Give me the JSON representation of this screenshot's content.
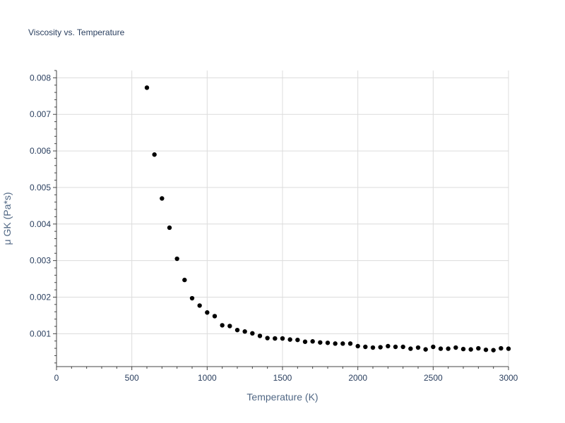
{
  "chart_data": {
    "type": "scatter",
    "title": "Viscosity vs. Temperature",
    "xlabel": "Temperature (K)",
    "ylabel": "μ GK (Pa*s)",
    "xlim": [
      0,
      3000
    ],
    "ylim": [
      0.0001,
      0.0082
    ],
    "x_ticks": [
      0,
      500,
      1000,
      1500,
      2000,
      2500,
      3000
    ],
    "x_tick_labels": [
      "0",
      "500",
      "1000",
      "1500",
      "2000",
      "2500",
      "3000"
    ],
    "y_ticks": [
      0.001,
      0.002,
      0.003,
      0.004,
      0.005,
      0.006,
      0.007,
      0.008
    ],
    "y_tick_labels": [
      "0.001",
      "0.002",
      "0.003",
      "0.004",
      "0.005",
      "0.006",
      "0.007",
      "0.008"
    ],
    "grid": true,
    "marker_color": "#000000",
    "series": [
      {
        "x": [
          600,
          650,
          700,
          750,
          800,
          850,
          900,
          950,
          1000,
          1050,
          1100,
          1150,
          1200,
          1250,
          1300,
          1350,
          1400,
          1450,
          1500,
          1550,
          1600,
          1650,
          1700,
          1750,
          1800,
          1850,
          1900,
          1950,
          2000,
          2050,
          2100,
          2150,
          2200,
          2250,
          2300,
          2350,
          2400,
          2450,
          2500,
          2550,
          2600,
          2650,
          2700,
          2750,
          2800,
          2850,
          2900,
          2950,
          3000
        ],
        "y": [
          0.00773,
          0.0059,
          0.0047,
          0.0039,
          0.00305,
          0.00247,
          0.00197,
          0.00177,
          0.00158,
          0.00148,
          0.00123,
          0.00121,
          0.0011,
          0.00106,
          0.00101,
          0.00094,
          0.00088,
          0.00087,
          0.00087,
          0.00084,
          0.00083,
          0.00078,
          0.00079,
          0.00076,
          0.00075,
          0.00073,
          0.00073,
          0.00073,
          0.00066,
          0.00064,
          0.00062,
          0.00063,
          0.00066,
          0.00064,
          0.00064,
          0.00059,
          0.00062,
          0.00057,
          0.00064,
          0.00059,
          0.00059,
          0.00062,
          0.00058,
          0.00057,
          0.0006,
          0.00056,
          0.00055,
          0.0006,
          0.00059
        ]
      }
    ]
  }
}
